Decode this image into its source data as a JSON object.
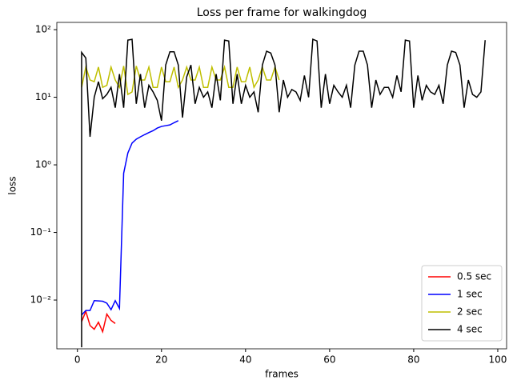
{
  "chart_data": {
    "type": "line",
    "title": "Loss per frame for walkingdog",
    "x_label": "frames",
    "y_label": "loss",
    "log_y": true,
    "legend": "lower right",
    "xlim": [
      -4.9,
      102.1
    ],
    "xticks": [
      0,
      20,
      40,
      60,
      80,
      100
    ],
    "ylim": [
      0.0019,
      128
    ],
    "yticks": [
      {
        "value": 0.01,
        "label": "10⁻²"
      },
      {
        "value": 0.1,
        "label": "10⁻¹"
      },
      {
        "value": 1,
        "label": "10⁰"
      },
      {
        "value": 10,
        "label": "10¹"
      },
      {
        "value": 100,
        "label": "10²"
      }
    ],
    "series": [
      {
        "name": "0.5 sec",
        "color": "#ff0000",
        "x": [
          1,
          2,
          3,
          4,
          5,
          6,
          7,
          8,
          9
        ],
        "values": [
          0.0048,
          0.0068,
          0.0042,
          0.0037,
          0.0047,
          0.0034,
          0.0062,
          0.005,
          0.0045
        ]
      },
      {
        "name": "1 sec",
        "color": "#0000ff",
        "x": [
          1,
          2,
          3,
          4,
          5,
          6,
          7,
          8,
          9,
          10,
          11,
          12,
          13,
          14,
          15,
          16,
          17,
          18,
          19,
          20,
          21,
          22,
          23,
          24
        ],
        "values": [
          0.006,
          0.007,
          0.007,
          0.0098,
          0.0097,
          0.0096,
          0.009,
          0.0072,
          0.0098,
          0.0075,
          0.75,
          1.5,
          2.1,
          2.4,
          2.6,
          2.8,
          3.0,
          3.2,
          3.5,
          3.7,
          3.8,
          3.9,
          4.2,
          4.5
        ]
      },
      {
        "name": "2 sec",
        "color": "#bfbf00",
        "x": [
          1,
          2,
          3,
          4,
          5,
          6,
          7,
          8,
          9,
          10,
          11,
          12,
          13,
          14,
          15,
          16,
          17,
          18,
          19,
          20,
          21,
          22,
          23,
          24,
          25,
          26,
          27,
          28,
          29,
          30,
          31,
          32,
          33,
          34,
          35,
          36,
          37,
          38,
          39,
          40,
          41,
          42,
          43,
          44,
          45,
          46,
          47,
          48
        ],
        "values": [
          14,
          28,
          18,
          17,
          28,
          14,
          15,
          28,
          18,
          14,
          29,
          11,
          12,
          29,
          18,
          18,
          28,
          14,
          14,
          28,
          17,
          17,
          28,
          14,
          18,
          28,
          18,
          18,
          28,
          14,
          14,
          28,
          18,
          18,
          28,
          14,
          14,
          28,
          17,
          17,
          28,
          14,
          18,
          28,
          18,
          18,
          28,
          18
        ]
      },
      {
        "name": "4 sec",
        "color": "#000000",
        "x": [
          1,
          1,
          2,
          3,
          4,
          5,
          6,
          7,
          8,
          9,
          10,
          11,
          12,
          13,
          14,
          15,
          16,
          17,
          18,
          19,
          20,
          21,
          22,
          23,
          24,
          25,
          26,
          27,
          28,
          29,
          30,
          31,
          32,
          33,
          34,
          35,
          36,
          37,
          38,
          39,
          40,
          41,
          42,
          43,
          44,
          45,
          46,
          47,
          48,
          49,
          50,
          51,
          52,
          53,
          54,
          55,
          56,
          57,
          58,
          59,
          60,
          61,
          62,
          63,
          64,
          65,
          66,
          67,
          68,
          69,
          70,
          71,
          72,
          73,
          74,
          75,
          76,
          77,
          78,
          79,
          80,
          81,
          82,
          83,
          84,
          85,
          86,
          87,
          88,
          89,
          90,
          91,
          92,
          93,
          94,
          95,
          96,
          97
        ],
        "values": [
          0.002,
          46,
          38,
          2.6,
          10,
          17,
          9.5,
          11,
          14,
          7,
          22,
          7,
          70,
          72,
          8,
          22,
          7,
          15,
          12,
          9,
          4.5,
          30,
          47,
          47,
          30,
          5,
          20,
          30,
          8,
          14,
          10,
          12,
          7,
          22,
          9,
          70,
          68,
          8,
          22,
          8,
          15,
          10,
          12,
          6,
          30,
          48,
          45,
          30,
          6,
          18,
          10,
          13,
          12,
          9,
          21,
          10,
          72,
          68,
          7,
          22,
          8,
          15,
          12,
          10,
          15,
          7,
          30,
          48,
          48,
          30,
          7,
          18,
          11,
          14,
          14,
          10,
          21,
          12,
          70,
          68,
          7,
          21,
          9,
          15,
          12,
          11,
          15,
          8,
          30,
          48,
          46,
          30,
          7,
          18,
          11,
          10,
          12,
          70
        ]
      }
    ]
  }
}
